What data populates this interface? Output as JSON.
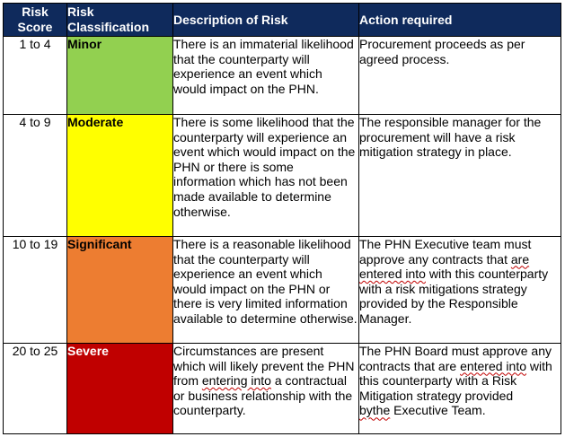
{
  "table": {
    "headers": {
      "score_line1": "Risk",
      "score_line2": "Score",
      "classification_line1": "Risk",
      "classification_line2": "Classification",
      "description": "Description of Risk",
      "action": "Action required"
    },
    "rows": [
      {
        "score": "1 to 4",
        "classification": "Minor",
        "description": "There is an immaterial likelihood that the counterparty will experience an event which would impact on the PHN.",
        "action": "Procurement proceeds as per agreed process."
      },
      {
        "score": "4 to 9",
        "classification": "Moderate",
        "description": "There is some likelihood that the counterparty will experience an event which would impact on the PHN or there is some information which has not been made available to determine otherwise.",
        "action": "The responsible manager for the procurement will have a risk mitigation strategy in place."
      },
      {
        "score": "10 to 19",
        "classification": "Significant",
        "description": "There is a reasonable likelihood that the counterparty will experience an event which would impact on the PHN or there is very limited information available to determine otherwise.",
        "action_a": "The PHN Executive team must approve any contracts that",
        "action_b": "are entered into",
        "action_c": "with this counterparty with a risk mitigations strategy provided by the Responsible Manager."
      },
      {
        "score": "20 to 25",
        "classification": "Severe",
        "description_a": "Circumstances are present which will likely prevent the PHN from",
        "description_b": "entering into",
        "description_c": "a contractual or business relationship with the counterparty.",
        "action_a": "The PHN Board must approve any contracts that are",
        "action_b": "entered into",
        "action_c": "with this counterparty with a Risk Mitigation strategy provided",
        "action_d": "bythe",
        "action_e": "Executive Team."
      }
    ],
    "colors": {
      "header_bg": "#0f2a5c",
      "minor": "#92d050",
      "moderate": "#ffff00",
      "significant": "#ed7d31",
      "severe": "#c00000"
    }
  }
}
